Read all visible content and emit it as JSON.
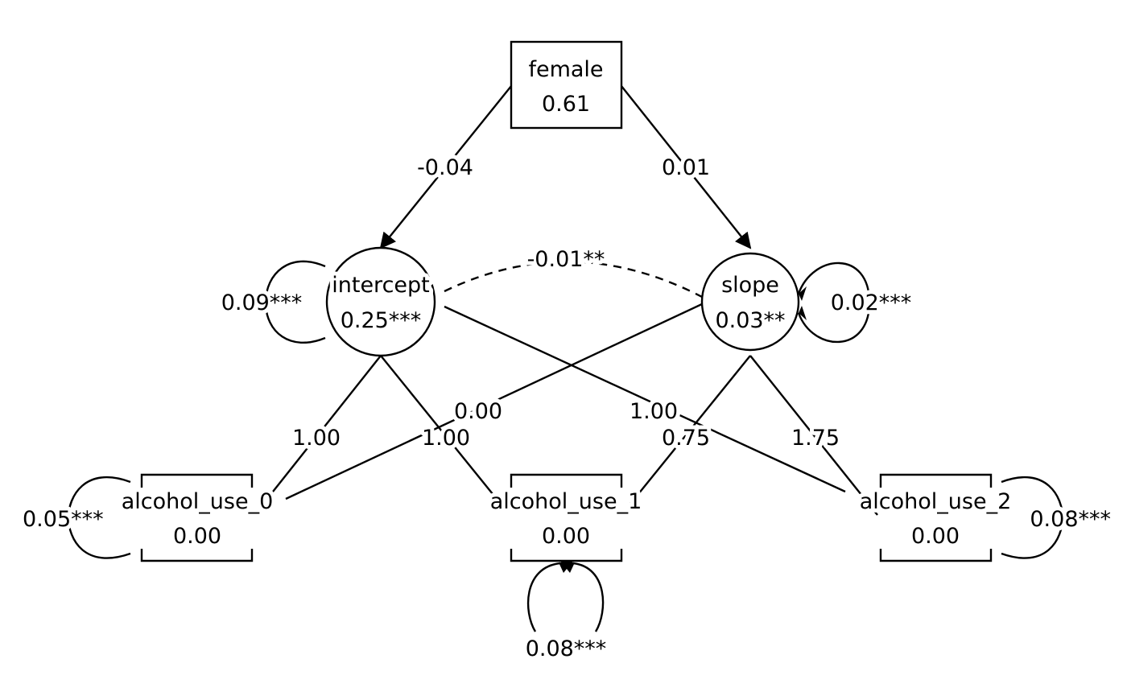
{
  "nodes": {
    "female": {
      "label": "female",
      "value": "0.61"
    },
    "intercept": {
      "label": "intercept",
      "value": "0.25***"
    },
    "slope": {
      "label": "slope",
      "value": "0.03**"
    },
    "alcohol_use_0": {
      "label": "alcohol_use_0",
      "value": "0.00"
    },
    "alcohol_use_1": {
      "label": "alcohol_use_1",
      "value": "0.00"
    },
    "alcohol_use_2": {
      "label": "alcohol_use_2",
      "value": "0.00"
    }
  },
  "edges": {
    "female_intercept": "-0.04",
    "female_slope": "0.01",
    "intercept_slope_cov": "-0.01**",
    "intercept_au0": "1.00",
    "intercept_au1": "1.00",
    "intercept_au2": "1.00",
    "slope_au0": "0.00",
    "slope_au1": "0.75",
    "slope_au2": "1.75"
  },
  "variances": {
    "intercept": "0.09***",
    "slope": "0.02***",
    "alcohol_use_0": "0.05***",
    "alcohol_use_1": "0.08***",
    "alcohol_use_2": "0.08***"
  }
}
